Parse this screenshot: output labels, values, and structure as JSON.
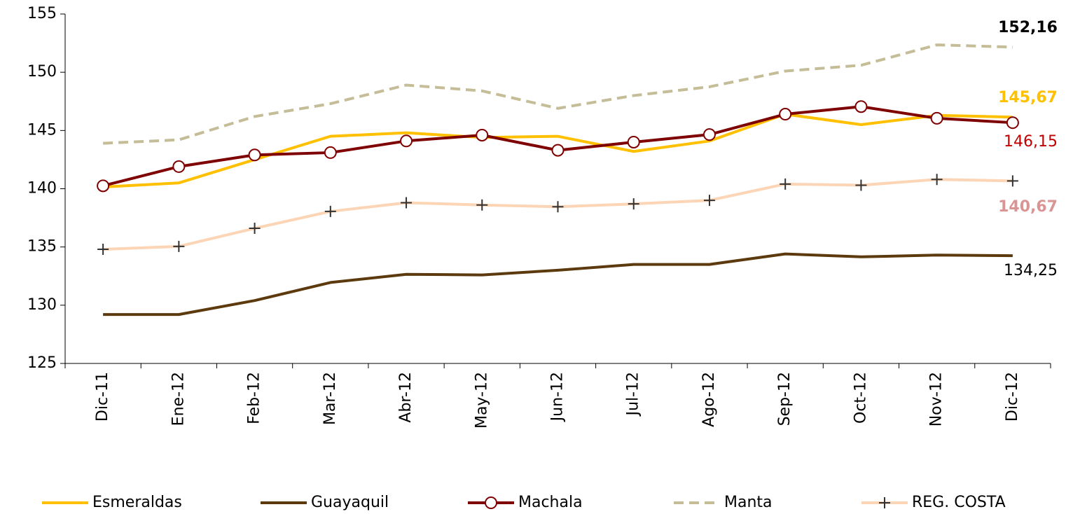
{
  "chart_data": {
    "type": "line",
    "categories": [
      "Dic-11",
      "Ene-12",
      "Feb-12",
      "Mar-12",
      "Abr-12",
      "May-12",
      "Jun-12",
      "Jul-12",
      "Ago-12",
      "Sep-12",
      "Oct-12",
      "Nov-12",
      "Dic-12"
    ],
    "ylim": [
      125,
      155
    ],
    "yticks": [
      125,
      130,
      135,
      140,
      145,
      150,
      155
    ],
    "series": [
      {
        "name": "Esmeraldas",
        "color": "#ffc000",
        "style": "solid",
        "marker": "none",
        "values": [
          140.15,
          140.5,
          142.5,
          144.5,
          144.8,
          144.4,
          144.5,
          143.2,
          144.1,
          146.4,
          145.5,
          146.3,
          146.15
        ]
      },
      {
        "name": "Guayaquil",
        "color": "#5c3a0e",
        "style": "solid",
        "marker": "none",
        "values": [
          129.2,
          129.2,
          130.4,
          131.95,
          132.65,
          132.6,
          133.0,
          133.5,
          133.5,
          134.4,
          134.15,
          134.3,
          134.25
        ]
      },
      {
        "name": "Machala",
        "color": "#7f0000",
        "style": "solid",
        "marker": "circle",
        "values": [
          140.25,
          141.9,
          142.9,
          143.1,
          144.1,
          144.6,
          143.3,
          144.0,
          144.65,
          146.4,
          147.05,
          146.05,
          145.67
        ]
      },
      {
        "name": "Manta",
        "color": "#c4bd97",
        "style": "dashed",
        "marker": "none",
        "values": [
          143.9,
          144.2,
          146.2,
          147.3,
          148.9,
          148.4,
          146.9,
          148.0,
          148.75,
          150.1,
          150.6,
          152.35,
          152.16
        ]
      },
      {
        "name": "REG. COSTA",
        "color": "#fbd5b5",
        "style": "solid",
        "marker": "plus",
        "values": [
          134.8,
          135.05,
          136.6,
          138.05,
          138.8,
          138.6,
          138.45,
          138.7,
          139.0,
          140.4,
          140.3,
          140.8,
          140.67
        ]
      }
    ],
    "annotations": [
      {
        "text": "152,16",
        "color": "#000000",
        "bold": true
      },
      {
        "text": "145,67",
        "color": "#ffc000",
        "bold": true
      },
      {
        "text": "146,15",
        "color": "#c00000",
        "bold": false
      },
      {
        "text": "140,67",
        "color": "#d99594",
        "bold": true
      },
      {
        "text": "134,25",
        "color": "#000000",
        "bold": false
      }
    ]
  }
}
